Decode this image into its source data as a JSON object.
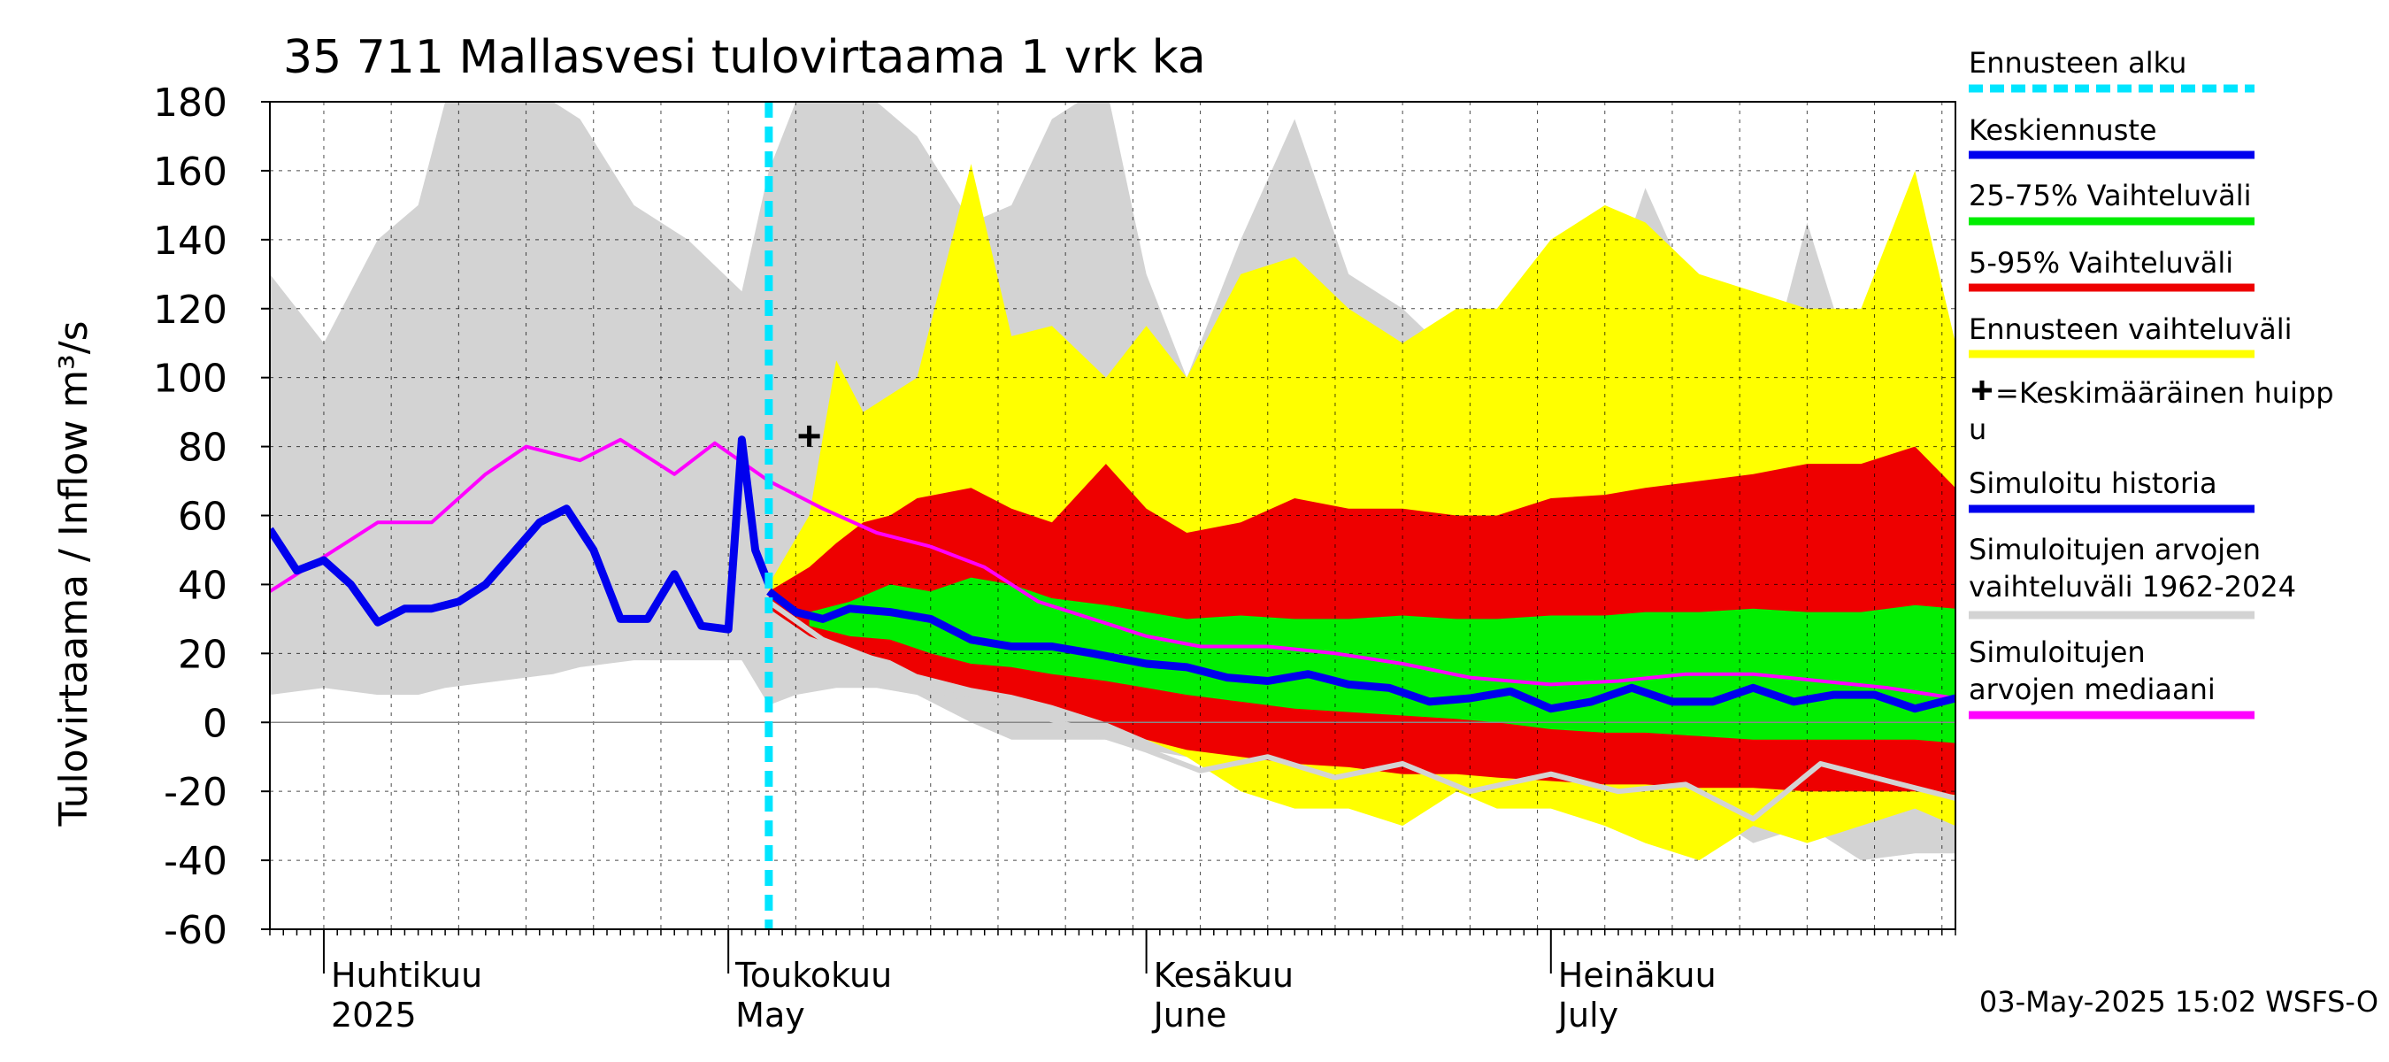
{
  "chart_data": {
    "type": "area",
    "title": "35 711 Mallasvesi tulovirtaama 1 vrk ka",
    "ylabel": "Tulovirtaama / Inflow    m³/s",
    "ylim": [
      -60,
      180
    ],
    "yticks": [
      -60,
      -40,
      -20,
      0,
      20,
      40,
      60,
      80,
      100,
      120,
      140,
      160,
      180
    ],
    "xlim": [
      "2025-03-28",
      "2025-07-31"
    ],
    "forecast_start": "2025-05-04",
    "grid": true,
    "legend_position": "right",
    "footer": "03-May-2025 15:02 WSFS-O",
    "month_labels": [
      {
        "date": "2025-04-01",
        "line1": "Huhtikuu",
        "line2": "2025"
      },
      {
        "date": "2025-05-01",
        "line1": "Toukokuu",
        "line2": "May"
      },
      {
        "date": "2025-06-01",
        "line1": "Kesäkuu",
        "line2": "June"
      },
      {
        "date": "2025-07-01",
        "line1": "Heinäkuu",
        "line2": "July"
      }
    ],
    "legend": [
      {
        "label": "Ennusteen alku",
        "color": "#00e5ff",
        "style": "dashed"
      },
      {
        "label": "Keskiennuste",
        "color": "#0000ee",
        "style": "solid"
      },
      {
        "label": "25-75% Vaihteluväli",
        "color": "#00ee00",
        "style": "solid"
      },
      {
        "label": "5-95% Vaihteluväli",
        "color": "#ee0000",
        "style": "solid"
      },
      {
        "label": "Ennusteen vaihteluväli",
        "color": "#ffff00",
        "style": "solid"
      },
      {
        "label": "=Keskimääräinen huippu",
        "color": "#000000",
        "style": "marker"
      },
      {
        "label": "Simuloitu historia",
        "color": "#0000ee",
        "style": "solid"
      },
      {
        "label": "Simuloitujen arvojen vaihteluväli 1962-2024",
        "color": "#d3d3d3",
        "style": "solid"
      },
      {
        "label": "Simuloitujen arvojen mediaani",
        "color": "#ff00ff",
        "style": "solid"
      }
    ],
    "mean_peak": {
      "date": "2025-05-07",
      "value": 83
    },
    "series": {
      "sim_range": {
        "x": [
          "2025-03-28",
          "2025-04-01",
          "2025-04-05",
          "2025-04-08",
          "2025-04-10",
          "2025-04-14",
          "2025-04-18",
          "2025-04-20",
          "2025-04-24",
          "2025-04-28",
          "2025-05-02",
          "2025-05-04",
          "2025-05-06",
          "2025-05-09",
          "2025-05-12",
          "2025-05-15",
          "2025-05-19",
          "2025-05-22",
          "2025-05-25",
          "2025-05-29",
          "2025-06-01",
          "2025-06-04",
          "2025-06-08",
          "2025-06-12",
          "2025-06-16",
          "2025-06-20",
          "2025-06-24",
          "2025-06-27",
          "2025-07-01",
          "2025-07-05",
          "2025-07-08",
          "2025-07-12",
          "2025-07-16",
          "2025-07-20",
          "2025-07-24",
          "2025-07-28",
          "2025-07-31"
        ],
        "low": [
          8,
          10,
          8,
          8,
          10,
          12,
          14,
          16,
          18,
          18,
          18,
          5,
          8,
          10,
          10,
          8,
          0,
          -5,
          -5,
          -5,
          -8,
          -10,
          -15,
          -20,
          -20,
          -22,
          -20,
          -22,
          -22,
          -25,
          -30,
          -25,
          -35,
          -30,
          -40,
          -38,
          -38
        ],
        "high": [
          130,
          110,
          140,
          150,
          180,
          180,
          180,
          175,
          150,
          140,
          125,
          160,
          180,
          180,
          180,
          170,
          145,
          150,
          175,
          185,
          130,
          100,
          140,
          175,
          130,
          120,
          105,
          95,
          125,
          120,
          155,
          120,
          85,
          145,
          95,
          158,
          110
        ]
      },
      "forecast_range": {
        "x": [
          "2025-05-04",
          "2025-05-07",
          "2025-05-09",
          "2025-05-11",
          "2025-05-13",
          "2025-05-15",
          "2025-05-19",
          "2025-05-22",
          "2025-05-25",
          "2025-05-29",
          "2025-06-01",
          "2025-06-04",
          "2025-06-08",
          "2025-06-12",
          "2025-06-16",
          "2025-06-20",
          "2025-06-24",
          "2025-06-27",
          "2025-07-01",
          "2025-07-05",
          "2025-07-08",
          "2025-07-12",
          "2025-07-16",
          "2025-07-20",
          "2025-07-24",
          "2025-07-28",
          "2025-07-31"
        ],
        "low": [
          35,
          30,
          30,
          28,
          20,
          15,
          12,
          10,
          8,
          5,
          -5,
          -10,
          -20,
          -25,
          -25,
          -30,
          -20,
          -25,
          -25,
          -30,
          -35,
          -40,
          -30,
          -35,
          -30,
          -25,
          -30
        ],
        "high": [
          40,
          60,
          105,
          90,
          95,
          100,
          162,
          112,
          115,
          100,
          115,
          100,
          130,
          135,
          120,
          110,
          120,
          120,
          140,
          150,
          145,
          130,
          125,
          120,
          120,
          160,
          110
        ]
      },
      "p5_95": {
        "x": [
          "2025-05-04",
          "2025-05-07",
          "2025-05-09",
          "2025-05-11",
          "2025-05-13",
          "2025-05-15",
          "2025-05-19",
          "2025-05-22",
          "2025-05-25",
          "2025-05-29",
          "2025-06-01",
          "2025-06-04",
          "2025-06-08",
          "2025-06-12",
          "2025-06-16",
          "2025-06-20",
          "2025-06-24",
          "2025-06-27",
          "2025-07-01",
          "2025-07-05",
          "2025-07-08",
          "2025-07-12",
          "2025-07-16",
          "2025-07-20",
          "2025-07-24",
          "2025-07-28",
          "2025-07-31"
        ],
        "low": [
          33,
          25,
          22,
          20,
          18,
          14,
          10,
          8,
          5,
          0,
          -5,
          -8,
          -10,
          -12,
          -13,
          -15,
          -15,
          -16,
          -17,
          -18,
          -18,
          -19,
          -19,
          -20,
          -20,
          -20,
          -21
        ],
        "high": [
          38,
          45,
          52,
          58,
          60,
          65,
          68,
          62,
          58,
          75,
          62,
          55,
          58,
          65,
          62,
          62,
          60,
          60,
          65,
          66,
          68,
          70,
          72,
          75,
          75,
          80,
          68
        ]
      },
      "p25_75": {
        "x": [
          "2025-05-07",
          "2025-05-10",
          "2025-05-13",
          "2025-05-16",
          "2025-05-19",
          "2025-05-22",
          "2025-05-25",
          "2025-05-29",
          "2025-06-01",
          "2025-06-04",
          "2025-06-08",
          "2025-06-12",
          "2025-06-16",
          "2025-06-20",
          "2025-06-24",
          "2025-06-27",
          "2025-07-01",
          "2025-07-05",
          "2025-07-08",
          "2025-07-12",
          "2025-07-16",
          "2025-07-20",
          "2025-07-24",
          "2025-07-28",
          "2025-07-31"
        ],
        "low": [
          28,
          25,
          24,
          20,
          17,
          16,
          14,
          12,
          10,
          8,
          6,
          4,
          3,
          2,
          1,
          0,
          -2,
          -3,
          -3,
          -4,
          -5,
          -5,
          -5,
          -5,
          -6
        ],
        "high": [
          32,
          35,
          40,
          38,
          42,
          40,
          36,
          34,
          32,
          30,
          31,
          30,
          30,
          31,
          30,
          30,
          31,
          31,
          32,
          32,
          33,
          32,
          32,
          34,
          33
        ]
      },
      "simulated_history": {
        "x": [
          "2025-03-28",
          "2025-03-30",
          "2025-04-01",
          "2025-04-03",
          "2025-04-05",
          "2025-04-07",
          "2025-04-09",
          "2025-04-11",
          "2025-04-13",
          "2025-04-15",
          "2025-04-17",
          "2025-04-19",
          "2025-04-21",
          "2025-04-23",
          "2025-04-25",
          "2025-04-27",
          "2025-04-29",
          "2025-05-01",
          "2025-05-02",
          "2025-05-03",
          "2025-05-04"
        ],
        "values": [
          56,
          44,
          47,
          40,
          29,
          33,
          33,
          35,
          40,
          49,
          58,
          62,
          50,
          30,
          30,
          43,
          28,
          27,
          82,
          50,
          40
        ]
      },
      "median_forecast": {
        "x": [
          "2025-05-04",
          "2025-05-06",
          "2025-05-08",
          "2025-05-10",
          "2025-05-13",
          "2025-05-16",
          "2025-05-19",
          "2025-05-22",
          "2025-05-25",
          "2025-05-28",
          "2025-06-01",
          "2025-06-04",
          "2025-06-07",
          "2025-06-10",
          "2025-06-13",
          "2025-06-16",
          "2025-06-19",
          "2025-06-22",
          "2025-06-25",
          "2025-06-28",
          "2025-07-01",
          "2025-07-04",
          "2025-07-07",
          "2025-07-10",
          "2025-07-13",
          "2025-07-16",
          "2025-07-19",
          "2025-07-22",
          "2025-07-25",
          "2025-07-28",
          "2025-07-31"
        ],
        "values": [
          38,
          32,
          30,
          33,
          32,
          30,
          24,
          22,
          22,
          20,
          17,
          16,
          13,
          12,
          14,
          11,
          10,
          6,
          7,
          9,
          4,
          6,
          10,
          6,
          6,
          10,
          6,
          8,
          8,
          4,
          7
        ]
      },
      "historical_median": {
        "x": [
          "2025-03-28",
          "2025-04-01",
          "2025-04-05",
          "2025-04-09",
          "2025-04-13",
          "2025-04-16",
          "2025-04-20",
          "2025-04-23",
          "2025-04-27",
          "2025-04-30",
          "2025-05-04",
          "2025-05-08",
          "2025-05-12",
          "2025-05-16",
          "2025-05-20",
          "2025-05-24",
          "2025-05-28",
          "2025-06-01",
          "2025-06-05",
          "2025-06-10",
          "2025-06-15",
          "2025-06-20",
          "2025-06-25",
          "2025-07-01",
          "2025-07-06",
          "2025-07-11",
          "2025-07-16",
          "2025-07-21",
          "2025-07-26",
          "2025-07-31"
        ],
        "values": [
          38,
          48,
          58,
          58,
          72,
          80,
          76,
          82,
          72,
          81,
          70,
          62,
          55,
          51,
          45,
          35,
          30,
          25,
          22,
          22,
          20,
          17,
          13,
          11,
          12,
          14,
          14,
          12,
          10,
          7
        ]
      },
      "simulated_low_history": {
        "x": [
          "2025-05-04",
          "2025-05-08",
          "2025-05-12",
          "2025-05-16",
          "2025-05-20",
          "2025-05-24",
          "2025-05-28",
          "2025-06-01",
          "2025-06-05",
          "2025-06-10",
          "2025-06-15",
          "2025-06-20",
          "2025-06-25",
          "2025-07-01",
          "2025-07-06",
          "2025-07-11",
          "2025-07-16",
          "2025-07-21",
          "2025-07-26",
          "2025-07-31"
        ],
        "values": [
          35,
          24,
          18,
          10,
          5,
          2,
          -3,
          -8,
          -14,
          -10,
          -16,
          -12,
          -20,
          -15,
          -20,
          -18,
          -28,
          -12,
          -17,
          -22
        ]
      }
    }
  }
}
